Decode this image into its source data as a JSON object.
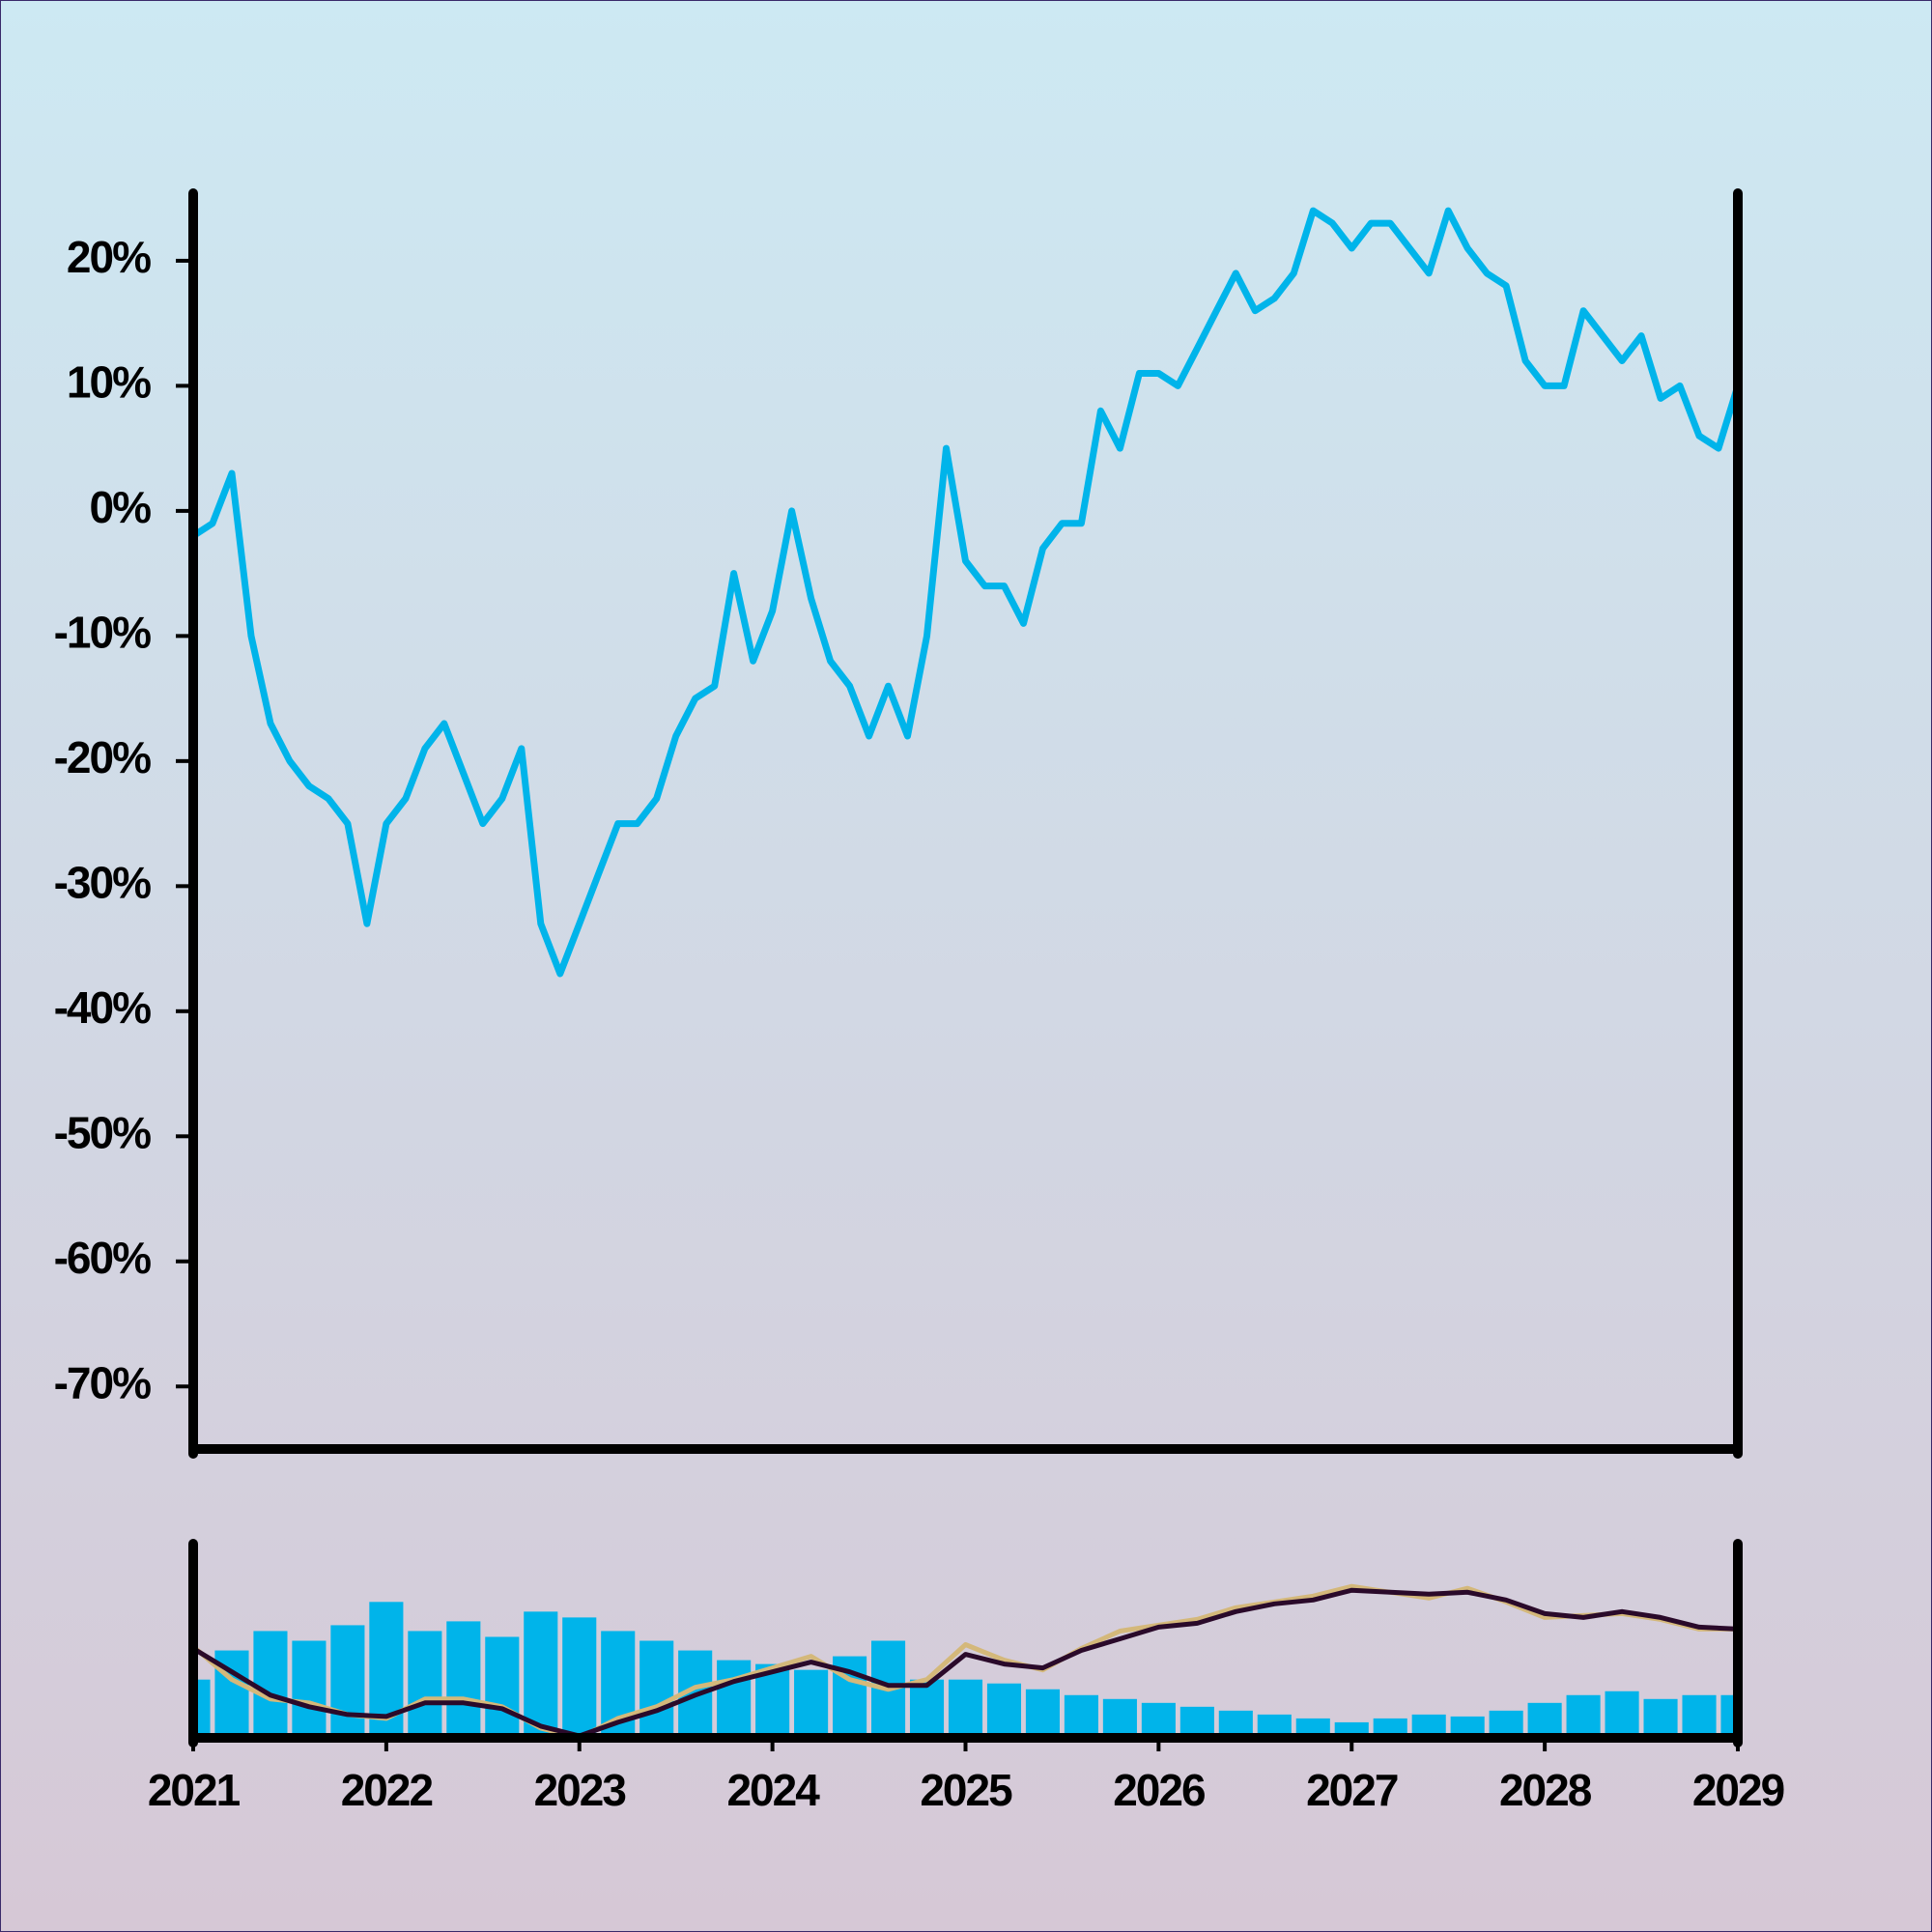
{
  "chart_data": [
    {
      "type": "line",
      "xlim": [
        2021,
        2029
      ],
      "ylim": [
        -75,
        25.4
      ],
      "yticks": [
        {
          "value": -70,
          "label": "-70%"
        },
        {
          "value": -60,
          "label": "-60%"
        },
        {
          "value": -50,
          "label": "-50%"
        },
        {
          "value": -40,
          "label": "-40%"
        },
        {
          "value": -30,
          "label": "-30%"
        },
        {
          "value": -20,
          "label": "-20%"
        },
        {
          "value": -10,
          "label": "-10%"
        },
        {
          "value": 0,
          "label": "0%"
        },
        {
          "value": 10,
          "label": "10%"
        },
        {
          "value": 20,
          "label": "20%"
        }
      ],
      "x": [
        2021.0,
        2021.1,
        2021.2,
        2021.3,
        2021.4,
        2021.5,
        2021.6,
        2021.7,
        2021.8,
        2021.9,
        2022.0,
        2022.1,
        2022.2,
        2022.3,
        2022.4,
        2022.5,
        2022.6,
        2022.7,
        2022.8,
        2022.9,
        2023.0,
        2023.1,
        2023.2,
        2023.3,
        2023.4,
        2023.5,
        2023.6,
        2023.7,
        2023.8,
        2023.9,
        2024.0,
        2024.1,
        2024.2,
        2024.3,
        2024.4,
        2024.5,
        2024.6,
        2024.7,
        2024.8,
        2024.9,
        2025.0,
        2025.1,
        2025.2,
        2025.3,
        2025.4,
        2025.5,
        2025.6,
        2025.7,
        2025.8,
        2025.9,
        2026.0,
        2026.1,
        2026.2,
        2026.3,
        2026.4,
        2026.5,
        2026.6,
        2026.7,
        2026.8,
        2026.9,
        2027.0,
        2027.1,
        2027.2,
        2027.3,
        2027.4,
        2027.5,
        2027.6,
        2027.7,
        2027.8,
        2027.9,
        2028.0,
        2028.1,
        2028.2,
        2028.3,
        2028.4,
        2028.5,
        2028.6,
        2028.7,
        2028.8,
        2028.9,
        2029.0
      ],
      "series": [
        {
          "color": "#00b4ea",
          "values": [
            -2,
            -1,
            3,
            -10,
            -17,
            -20,
            -22,
            -23,
            -25,
            -33,
            -25,
            -23,
            -19,
            -17,
            -21,
            -25,
            -23,
            -19,
            -33,
            -37,
            -33,
            -29,
            -25,
            -25,
            -23,
            -18,
            -15,
            -14,
            -5,
            -12,
            -8,
            0,
            -7,
            -12,
            -14,
            -18,
            -14,
            -18,
            -10,
            5,
            -4,
            -6,
            -6,
            -9,
            -3,
            -1,
            -1,
            8,
            5,
            11,
            11,
            10,
            13,
            16,
            19,
            16,
            17,
            19,
            24,
            23,
            21,
            23,
            23,
            21,
            19,
            24,
            21,
            19,
            18,
            12,
            10,
            10,
            16,
            14,
            12,
            14,
            9,
            10,
            6,
            5,
            10
          ]
        }
      ]
    },
    {
      "type": "combo",
      "xlim": [
        2021,
        2029
      ],
      "ylim": [
        0,
        100
      ],
      "xticks": [
        2021,
        2022,
        2023,
        2024,
        2025,
        2026,
        2027,
        2028,
        2029
      ],
      "x": [
        2021.0,
        2021.2,
        2021.4,
        2021.6,
        2021.8,
        2022.0,
        2022.2,
        2022.4,
        2022.6,
        2022.8,
        2023.0,
        2023.2,
        2023.4,
        2023.6,
        2023.8,
        2024.0,
        2024.2,
        2024.4,
        2024.6,
        2024.8,
        2025.0,
        2025.2,
        2025.4,
        2025.6,
        2025.8,
        2026.0,
        2026.2,
        2026.4,
        2026.6,
        2026.8,
        2027.0,
        2027.2,
        2027.4,
        2027.6,
        2027.8,
        2028.0,
        2028.2,
        2028.4,
        2028.6,
        2028.8,
        2029.0
      ],
      "series": [
        {
          "type": "bar",
          "color": "#00b4ea",
          "values": [
            30,
            45,
            55,
            50,
            58,
            70,
            55,
            60,
            52,
            65,
            62,
            55,
            50,
            45,
            40,
            38,
            35,
            42,
            50,
            30,
            30,
            28,
            25,
            22,
            20,
            18,
            16,
            14,
            12,
            10,
            8,
            10,
            12,
            11,
            14,
            18,
            22,
            24,
            20,
            22,
            22
          ]
        },
        {
          "type": "line",
          "color": "#d4b87a",
          "values": [
            47,
            30,
            20,
            18,
            12,
            10,
            20,
            20,
            16,
            5,
            0,
            10,
            16,
            26,
            30,
            36,
            42,
            30,
            25,
            30,
            48,
            40,
            35,
            46,
            55,
            58,
            61,
            67,
            70,
            73,
            78,
            75,
            72,
            77,
            70,
            62,
            63,
            64,
            61,
            56,
            56
          ]
        },
        {
          "type": "line",
          "color": "#2a0a2a",
          "values": [
            46,
            34,
            22,
            16,
            12,
            11,
            18,
            18,
            15,
            6,
            1,
            8,
            14,
            22,
            29,
            34,
            39,
            34,
            27,
            27,
            43,
            38,
            36,
            45,
            51,
            57,
            59,
            65,
            69,
            71,
            76,
            75,
            74,
            75,
            71,
            64,
            62,
            65,
            62,
            57,
            56
          ]
        }
      ]
    }
  ]
}
